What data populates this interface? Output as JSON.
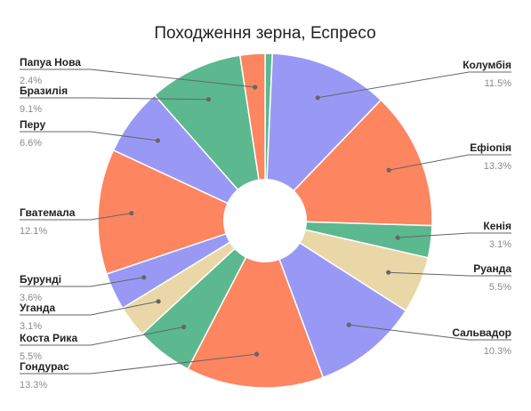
{
  "chart_data": {
    "type": "pie",
    "title": "Походження зерна, Еспресо",
    "donut": true,
    "start_angle_deg": 0,
    "direction": "clockwise",
    "slices": [
      {
        "label": "Папуа Нова",
        "value": 0.7,
        "pct_label": "",
        "color": "#5cb88f"
      },
      {
        "label": "Колумбія",
        "value": 11.5,
        "pct_label": "11.5%",
        "color": "#9999f5"
      },
      {
        "label": "Ефіопія",
        "value": 13.3,
        "pct_label": "13.3%",
        "color": "#fd8560"
      },
      {
        "label": "Кенія",
        "value": 3.1,
        "pct_label": "3.1%",
        "color": "#5cb88f"
      },
      {
        "label": "Руанда",
        "value": 5.5,
        "pct_label": "5.5%",
        "color": "#ead7a8"
      },
      {
        "label": "Сальвадор",
        "value": 10.3,
        "pct_label": "10.3%",
        "color": "#9999f5"
      },
      {
        "label": "Гондурас",
        "value": 13.3,
        "pct_label": "13.3%",
        "color": "#fd8560"
      },
      {
        "label": "Коста Рика",
        "value": 5.5,
        "pct_label": "5.5%",
        "color": "#5cb88f"
      },
      {
        "label": "Уганда",
        "value": 3.1,
        "pct_label": "3.1%",
        "color": "#ead7a8"
      },
      {
        "label": "Бурунді",
        "value": 3.6,
        "pct_label": "3.6%",
        "color": "#9999f5"
      },
      {
        "label": "Гватемала",
        "value": 12.1,
        "pct_label": "12.1%",
        "color": "#fd8560"
      },
      {
        "label": "Перу",
        "value": 6.6,
        "pct_label": "6.6%",
        "color": "#9999f5"
      },
      {
        "label": "Бразилія",
        "value": 9.1,
        "pct_label": "9.1%",
        "color": "#5cb88f"
      },
      {
        "label": "Папуа Нова",
        "value": 2.4,
        "pct_label": "2.4%",
        "color": "#fd8560"
      }
    ]
  }
}
